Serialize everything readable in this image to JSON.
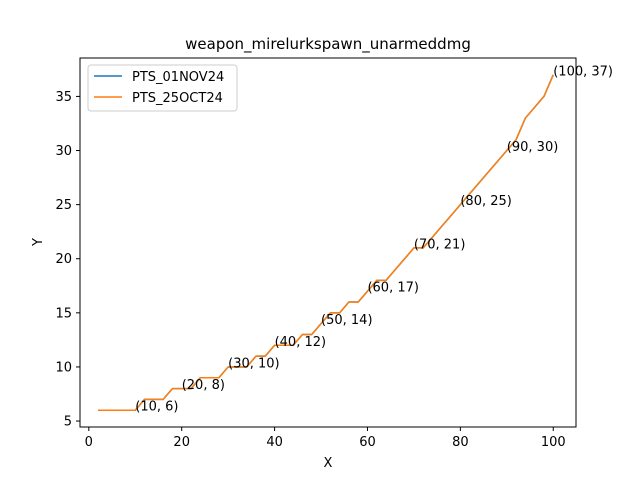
{
  "chart_data": {
    "type": "line",
    "title": "weapon_mirelurkspawn_unarmeddmg",
    "xlabel": "X",
    "ylabel": "Y",
    "xlim": [
      -1.9,
      104.9
    ],
    "ylim": [
      4.45,
      38.55
    ],
    "xticks": [
      0,
      20,
      40,
      60,
      80,
      100
    ],
    "yticks": [
      5,
      10,
      15,
      20,
      25,
      30,
      35
    ],
    "legend_position": "upper-left",
    "grid": false,
    "series": [
      {
        "name": "PTS_01NOV24",
        "color": "#1f77b4",
        "x": [
          2,
          4,
          6,
          8,
          10,
          12,
          14,
          16,
          18,
          20,
          22,
          24,
          26,
          28,
          30,
          32,
          34,
          36,
          38,
          40,
          42,
          44,
          46,
          48,
          50,
          52,
          54,
          56,
          58,
          60,
          62,
          64,
          66,
          68,
          70,
          72,
          74,
          76,
          78,
          80,
          82,
          84,
          86,
          88,
          90,
          92,
          94,
          96,
          98,
          100
        ],
        "y": [
          6,
          6,
          6,
          6,
          6,
          7,
          7,
          7,
          8,
          8,
          8,
          9,
          9,
          9,
          10,
          10,
          10,
          11,
          11,
          12,
          12,
          12,
          13,
          13,
          14,
          15,
          15,
          16,
          16,
          17,
          18,
          18,
          19,
          20,
          21,
          21,
          22,
          23,
          24,
          25,
          26,
          27,
          28,
          29,
          30,
          31,
          33,
          34,
          35,
          37
        ]
      },
      {
        "name": "PTS_25OCT24",
        "color": "#ff7f0e",
        "x": [
          2,
          4,
          6,
          8,
          10,
          12,
          14,
          16,
          18,
          20,
          22,
          24,
          26,
          28,
          30,
          32,
          34,
          36,
          38,
          40,
          42,
          44,
          46,
          48,
          50,
          52,
          54,
          56,
          58,
          60,
          62,
          64,
          66,
          68,
          70,
          72,
          74,
          76,
          78,
          80,
          82,
          84,
          86,
          88,
          90,
          92,
          94,
          96,
          98,
          100
        ],
        "y": [
          6,
          6,
          6,
          6,
          6,
          7,
          7,
          7,
          8,
          8,
          8,
          9,
          9,
          9,
          10,
          10,
          10,
          11,
          11,
          12,
          12,
          12,
          13,
          13,
          14,
          15,
          15,
          16,
          16,
          17,
          18,
          18,
          19,
          20,
          21,
          21,
          22,
          23,
          24,
          25,
          26,
          27,
          28,
          29,
          30,
          31,
          33,
          34,
          35,
          37
        ]
      }
    ],
    "annotations": [
      {
        "x": 10,
        "y": 6,
        "text": "(10, 6)"
      },
      {
        "x": 20,
        "y": 8,
        "text": "(20, 8)"
      },
      {
        "x": 30,
        "y": 10,
        "text": "(30, 10)"
      },
      {
        "x": 40,
        "y": 12,
        "text": "(40, 12)"
      },
      {
        "x": 50,
        "y": 14,
        "text": "(50, 14)"
      },
      {
        "x": 60,
        "y": 17,
        "text": "(60, 17)"
      },
      {
        "x": 70,
        "y": 21,
        "text": "(70, 21)"
      },
      {
        "x": 80,
        "y": 25,
        "text": "(80, 25)"
      },
      {
        "x": 90,
        "y": 30,
        "text": "(90, 30)"
      },
      {
        "x": 100,
        "y": 37,
        "text": "(100, 37)"
      }
    ]
  }
}
